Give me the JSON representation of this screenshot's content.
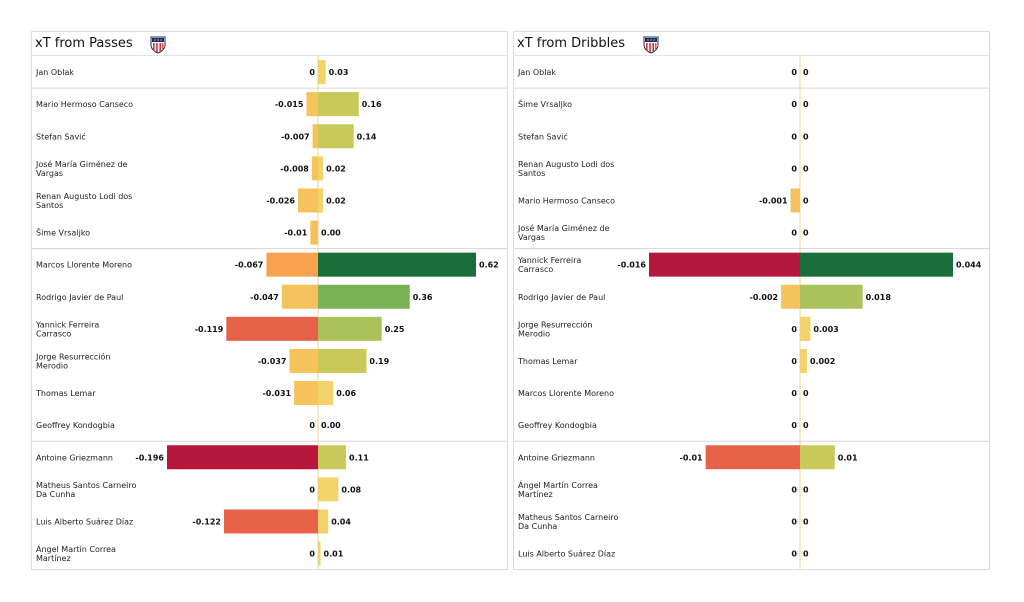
{
  "chart_data": [
    {
      "type": "bar",
      "title": "xT from Passes",
      "icon": "atletico-madrid-crest-icon",
      "groups": [
        [
          "Jan Oblak"
        ],
        [
          "Mario Hermoso Canseco",
          "Stefan Savić",
          "José María Giménez de Vargas",
          "Renan Augusto Lodi dos Santos",
          "Šime Vrsaljko"
        ],
        [
          "Marcos Llorente Moreno",
          "Rodrigo Javier de Paul",
          "Yannick Ferreira Carrasco",
          "Jorge Resurrección Merodio",
          "Thomas Lemar",
          "Geoffrey Kondogbia"
        ],
        [
          "Antoine Griezmann",
          "Matheus Santos Carneiro Da Cunha",
          "Luis Alberto Suárez Díaz",
          "Ángel Martín Correa Martínez"
        ]
      ],
      "rows": [
        {
          "name": "Jan Oblak",
          "neg": 0,
          "pos": 0.03,
          "neg_label": "0",
          "pos_label": "0.03"
        },
        {
          "name": "Mario Hermoso Canseco",
          "neg": -0.015,
          "pos": 0.16,
          "neg_label": "-0.015",
          "pos_label": "0.16"
        },
        {
          "name": "Stefan Savić",
          "neg": -0.007,
          "pos": 0.14,
          "neg_label": "-0.007",
          "pos_label": "0.14"
        },
        {
          "name": "José María Giménez de Vargas",
          "neg": -0.008,
          "pos": 0.02,
          "neg_label": "-0.008",
          "pos_label": "0.02"
        },
        {
          "name": "Renan Augusto Lodi dos Santos",
          "neg": -0.026,
          "pos": 0.02,
          "neg_label": "-0.026",
          "pos_label": "0.02"
        },
        {
          "name": "Šime Vrsaljko",
          "neg": -0.01,
          "pos": 0.0,
          "neg_label": "-0.01",
          "pos_label": "0.00"
        },
        {
          "name": "Marcos Llorente Moreno",
          "neg": -0.067,
          "pos": 0.62,
          "neg_label": "-0.067",
          "pos_label": "0.62"
        },
        {
          "name": "Rodrigo Javier de Paul",
          "neg": -0.047,
          "pos": 0.36,
          "neg_label": "-0.047",
          "pos_label": "0.36"
        },
        {
          "name": "Yannick Ferreira Carrasco",
          "neg": -0.119,
          "pos": 0.25,
          "neg_label": "-0.119",
          "pos_label": "0.25"
        },
        {
          "name": "Jorge Resurrección Merodio",
          "neg": -0.037,
          "pos": 0.19,
          "neg_label": "-0.037",
          "pos_label": "0.19"
        },
        {
          "name": "Thomas Lemar",
          "neg": -0.031,
          "pos": 0.06,
          "neg_label": "-0.031",
          "pos_label": "0.06"
        },
        {
          "name": "Geoffrey Kondogbia",
          "neg": 0,
          "pos": 0.0,
          "neg_label": "0",
          "pos_label": "0.00"
        },
        {
          "name": "Antoine Griezmann",
          "neg": -0.196,
          "pos": 0.11,
          "neg_label": "-0.196",
          "pos_label": "0.11"
        },
        {
          "name": "Matheus Santos Carneiro Da Cunha",
          "neg": 0,
          "pos": 0.08,
          "neg_label": "0",
          "pos_label": "0.08"
        },
        {
          "name": "Luis Alberto Suárez Díaz",
          "neg": -0.122,
          "pos": 0.04,
          "neg_label": "-0.122",
          "pos_label": "0.04"
        },
        {
          "name": "Ángel Martín Correa Martínez",
          "neg": 0,
          "pos": 0.01,
          "neg_label": "0",
          "pos_label": "0.01"
        }
      ],
      "pos_colors": [
        "#f2d26b",
        "#c9c95a",
        "#a9c25a",
        "#79b257",
        "#4e9e4a",
        "#1a6e3a"
      ],
      "neg_colors": [
        "#f5c25c",
        "#f6a24f",
        "#e6634a",
        "#b5173f"
      ]
    },
    {
      "type": "bar",
      "title": "xT from Dribbles",
      "icon": "atletico-madrid-crest-icon",
      "groups": [
        [
          "Jan Oblak"
        ],
        [
          "Šime Vrsaljko",
          "Stefan Savić",
          "Renan Augusto Lodi dos Santos",
          "Mario Hermoso Canseco",
          "José María Giménez de Vargas"
        ],
        [
          "Yannick Ferreira Carrasco",
          "Rodrigo Javier de Paul",
          "Jorge Resurrección Merodio",
          "Thomas Lemar",
          "Marcos Llorente Moreno",
          "Geoffrey Kondogbia"
        ],
        [
          "Antoine Griezmann",
          "Ángel Martín Correa Martínez",
          "Matheus Santos Carneiro Da Cunha",
          "Luis Alberto Suárez Díaz"
        ]
      ],
      "rows": [
        {
          "name": "Jan Oblak",
          "neg": 0,
          "pos": 0,
          "neg_label": "0",
          "pos_label": "0"
        },
        {
          "name": "Šime Vrsaljko",
          "neg": 0,
          "pos": 0,
          "neg_label": "0",
          "pos_label": "0"
        },
        {
          "name": "Stefan Savić",
          "neg": 0,
          "pos": 0,
          "neg_label": "0",
          "pos_label": "0"
        },
        {
          "name": "Renan Augusto Lodi dos Santos",
          "neg": 0,
          "pos": 0,
          "neg_label": "0",
          "pos_label": "0"
        },
        {
          "name": "Mario Hermoso Canseco",
          "neg": -0.001,
          "pos": 0,
          "neg_label": "-0.001",
          "pos_label": "0"
        },
        {
          "name": "José María Giménez de Vargas",
          "neg": 0,
          "pos": 0,
          "neg_label": "0",
          "pos_label": "0"
        },
        {
          "name": "Yannick Ferreira Carrasco",
          "neg": -0.016,
          "pos": 0.044,
          "neg_label": "-0.016",
          "pos_label": "0.044"
        },
        {
          "name": "Rodrigo Javier de Paul",
          "neg": -0.002,
          "pos": 0.018,
          "neg_label": "-0.002",
          "pos_label": "0.018"
        },
        {
          "name": "Jorge Resurrección Merodio",
          "neg": 0,
          "pos": 0.003,
          "neg_label": "0",
          "pos_label": "0.003"
        },
        {
          "name": "Thomas Lemar",
          "neg": 0,
          "pos": 0.002,
          "neg_label": "0",
          "pos_label": "0.002"
        },
        {
          "name": "Marcos Llorente Moreno",
          "neg": 0,
          "pos": 0,
          "neg_label": "0",
          "pos_label": "0"
        },
        {
          "name": "Geoffrey Kondogbia",
          "neg": 0,
          "pos": 0,
          "neg_label": "0",
          "pos_label": "0"
        },
        {
          "name": "Antoine Griezmann",
          "neg": -0.01,
          "pos": 0.01,
          "neg_label": "-0.01",
          "pos_label": "0.01"
        },
        {
          "name": "Ángel Martín Correa Martínez",
          "neg": 0,
          "pos": 0,
          "neg_label": "0",
          "pos_label": "0"
        },
        {
          "name": "Matheus Santos Carneiro Da Cunha",
          "neg": 0,
          "pos": 0,
          "neg_label": "0",
          "pos_label": "0"
        },
        {
          "name": "Luis Alberto Suárez Díaz",
          "neg": 0,
          "pos": 0,
          "neg_label": "0",
          "pos_label": "0"
        }
      ],
      "pos_colors": [
        "#f2d26b",
        "#c9c95a",
        "#a9c25a",
        "#79b257",
        "#4e9e4a",
        "#1a6e3a"
      ],
      "neg_colors": [
        "#f5c25c",
        "#f6a24f",
        "#e6634a",
        "#b5173f"
      ]
    }
  ]
}
